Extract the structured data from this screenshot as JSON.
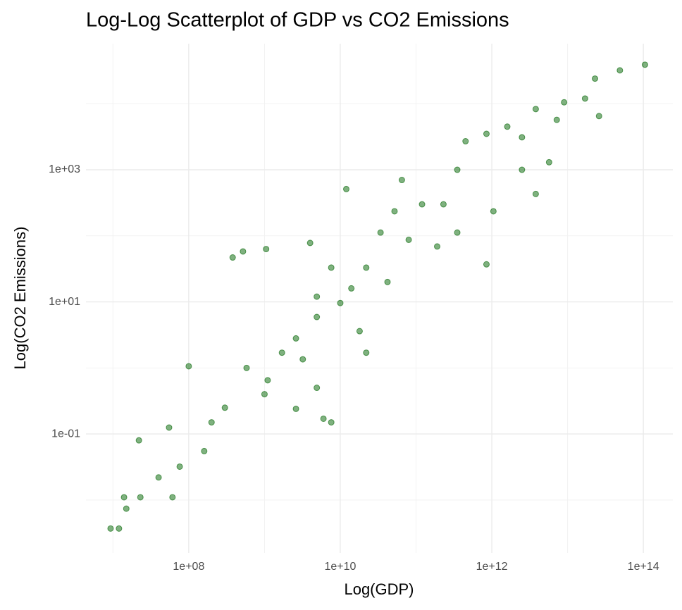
{
  "chart_data": {
    "type": "scatter",
    "title": "Log-Log Scatterplot of GDP vs CO2 Emissions",
    "x_label": "Log(GDP)",
    "y_label": "Log(CO2 Emissions)",
    "x_scale": "log",
    "y_scale": "log",
    "grid": true,
    "color": "#006400",
    "xlim": [
      4400000,
      245000000000000
    ],
    "ylim": [
      0.00158,
      81100
    ],
    "xticks": [
      {
        "value": 100000000,
        "label": "1e+08"
      },
      {
        "value": 10000000000,
        "label": "1e+10"
      },
      {
        "value": 1000000000000,
        "label": "1e+12"
      },
      {
        "value": 100000000000000,
        "label": "1e+14"
      }
    ],
    "yticks": [
      {
        "value": 0.1,
        "label": "1e-01"
      },
      {
        "value": 10,
        "label": "1e+01"
      },
      {
        "value": 1000,
        "label": "1e+03"
      }
    ],
    "xticks_minor": [
      10000000,
      1000000000,
      100000000000,
      10000000000000
    ],
    "yticks_minor": [
      0.01,
      1,
      100,
      10000
    ],
    "x": [
      9300000,
      12000000,
      14000000,
      23000000,
      61000000,
      15000000,
      22000000,
      55000000,
      40000000,
      76000000,
      100000000,
      200000000,
      380000000,
      520000000,
      1000000000,
      1050000000,
      2600000000,
      4000000000,
      12000000000,
      7600000000,
      2600000000,
      10000000000,
      4900000000,
      22000000000,
      65000000000,
      34000000000,
      120000000000,
      190000000000,
      350000000000,
      450000000000,
      850000000000,
      2500000000000,
      1600000000000,
      3800000000000,
      9000000000000,
      17000000000000,
      7200000000000,
      26000000000000,
      23000000000000,
      49000000000000,
      105000000000000,
      5700000000000,
      2500000000000,
      3800000000000,
      1050000000000,
      850000000000,
      1100000000,
      1700000000,
      4900000000,
      14000000000,
      18000000000,
      42000000000,
      80000000000,
      230000000000,
      350000000000,
      52000000000,
      580000000,
      300000000,
      160000000,
      6000000000,
      3200000000,
      7600000000,
      4900000000,
      22000000000
    ],
    "y": [
      0.0037,
      0.0037,
      0.011,
      0.011,
      0.011,
      0.0074,
      0.08,
      0.125,
      0.022,
      0.032,
      1.06,
      0.15,
      47,
      58,
      0.4,
      63,
      2.8,
      78,
      510,
      0.15,
      0.24,
      9.6,
      5.9,
      33,
      700,
      112,
      300,
      69,
      1000,
      2700,
      3500,
      3100,
      4500,
      8300,
      10500,
      12000,
      5700,
      6500,
      24000,
      32000,
      39000,
      1300,
      1000,
      430,
      235,
      37,
      0.65,
      1.7,
      12,
      16,
      3.6,
      20,
      87,
      300,
      112,
      235,
      1,
      0.25,
      0.055,
      0.17,
      1.35,
      33,
      0.5,
      1.7
    ]
  }
}
